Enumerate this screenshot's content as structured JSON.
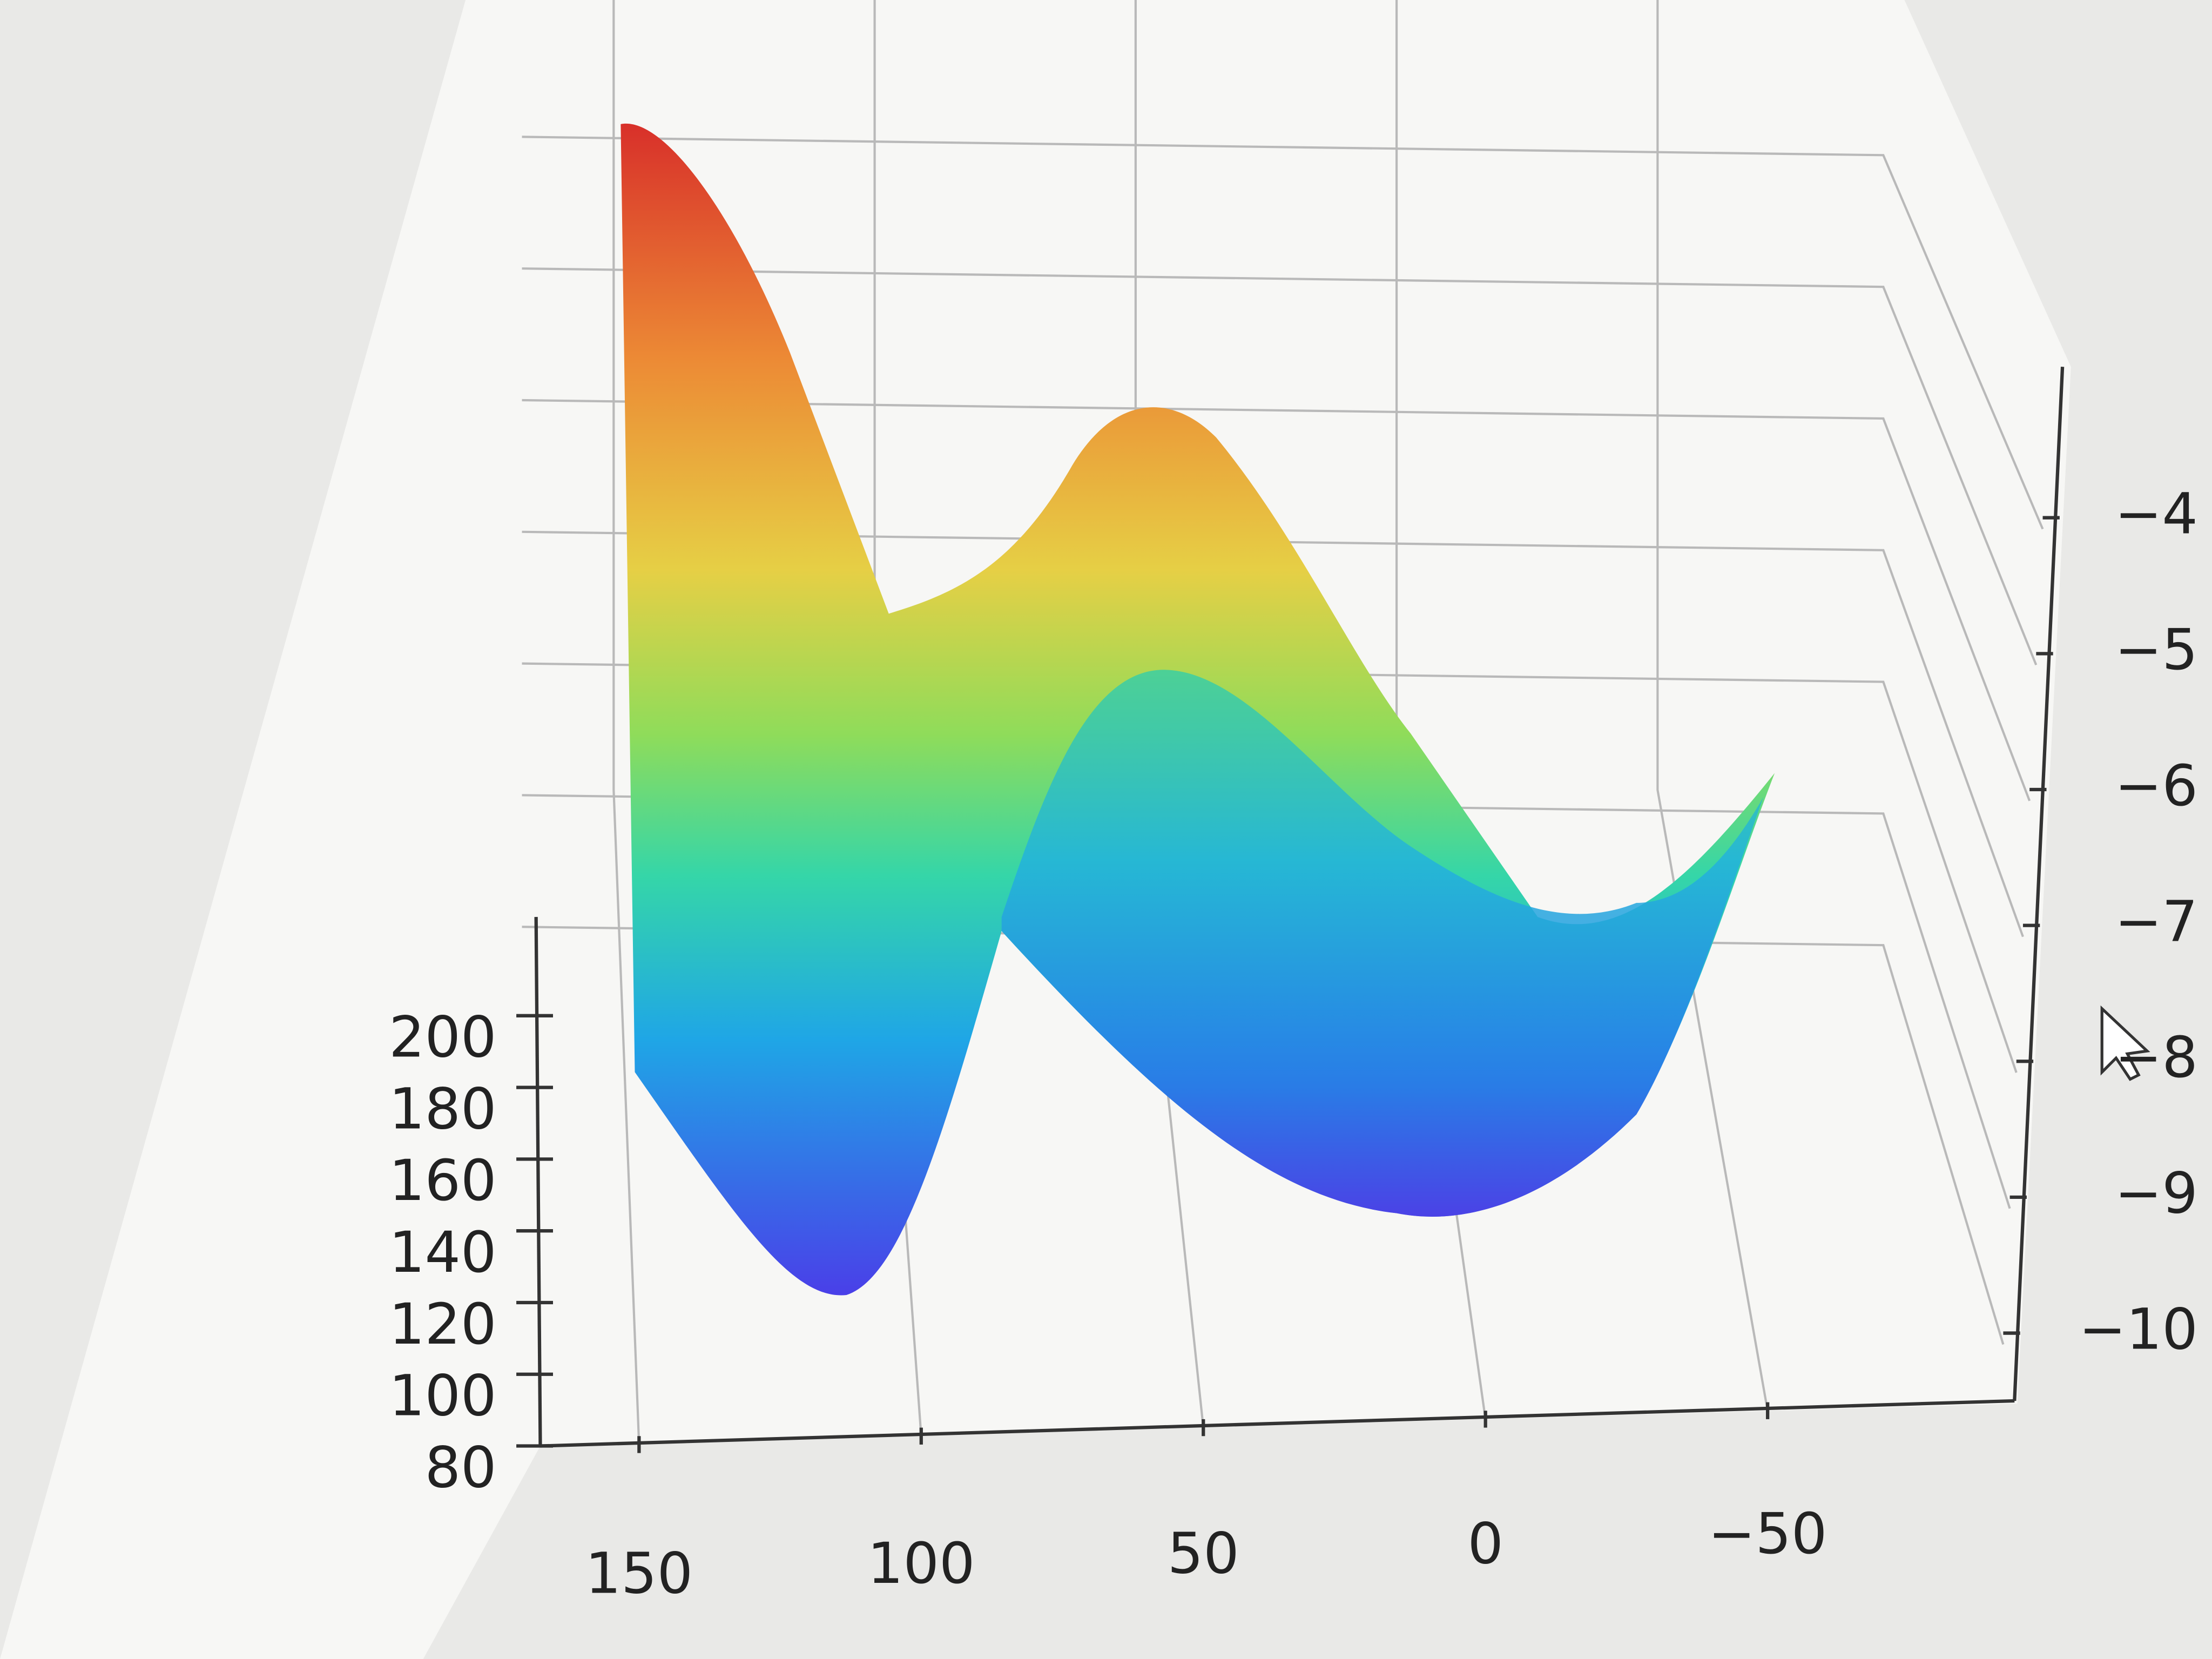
{
  "chart_data": {
    "type": "surface",
    "xticks": [
      150,
      100,
      50,
      0,
      {
        "value": -50,
        "label": "−50"
      }
    ],
    "yticks": [
      80,
      100,
      120,
      140,
      160,
      180,
      200
    ],
    "zticks": [
      {
        "value": -4,
        "label": "−4"
      },
      {
        "value": -5,
        "label": "−5"
      },
      {
        "value": -6,
        "label": "−6"
      },
      {
        "value": -7,
        "label": "−7"
      },
      {
        "value": -8,
        "label": "−8"
      },
      {
        "value": -9,
        "label": "−9"
      },
      {
        "value": -10,
        "label": "−10"
      }
    ]
  }
}
